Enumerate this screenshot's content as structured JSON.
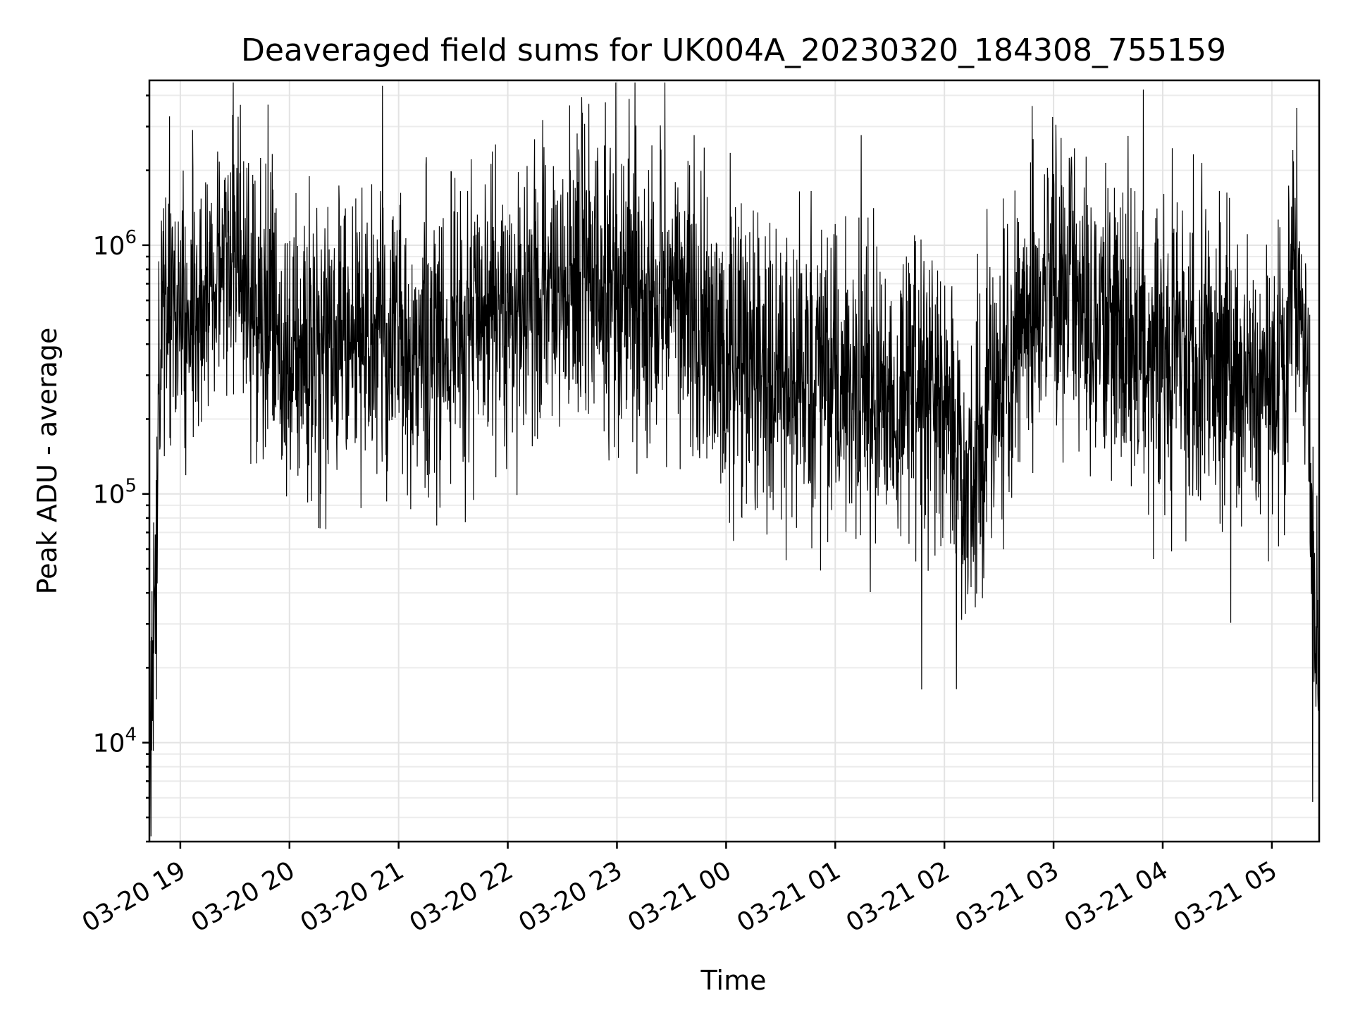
{
  "chart_data": {
    "type": "line",
    "title": "Deaveraged field sums for UK004A_20230320_184308_755159",
    "xlabel": "Time",
    "ylabel": "Peak ADU - average",
    "yscale": "log",
    "ylim": [
      4000,
      4600000
    ],
    "xlim": [
      "2023-03-20 18:43",
      "2023-03-21 05:26"
    ],
    "grid": true,
    "legend": "none",
    "line_color": "#000000",
    "x_ticks": [
      {
        "time": "2023-03-20 19:00",
        "label": "03-20 19"
      },
      {
        "time": "2023-03-20 20:00",
        "label": "03-20 20"
      },
      {
        "time": "2023-03-20 21:00",
        "label": "03-20 21"
      },
      {
        "time": "2023-03-20 22:00",
        "label": "03-20 22"
      },
      {
        "time": "2023-03-20 23:00",
        "label": "03-20 23"
      },
      {
        "time": "2023-03-21 00:00",
        "label": "03-21 00"
      },
      {
        "time": "2023-03-21 01:00",
        "label": "03-21 01"
      },
      {
        "time": "2023-03-21 02:00",
        "label": "03-21 02"
      },
      {
        "time": "2023-03-21 03:00",
        "label": "03-21 03"
      },
      {
        "time": "2023-03-21 04:00",
        "label": "03-21 04"
      },
      {
        "time": "2023-03-21 05:00",
        "label": "03-21 05"
      }
    ],
    "y_ticks": [
      {
        "value": 10000,
        "base": "10",
        "exp": "4"
      },
      {
        "value": 100000,
        "base": "10",
        "exp": "5"
      },
      {
        "value": 1000000,
        "base": "10",
        "exp": "6"
      }
    ],
    "series": [
      {
        "x": [
          "2023-03-20 18:43",
          "2023-03-20 18:44",
          "2023-03-20 18:45",
          "2023-03-20 18:46",
          "2023-03-20 18:47",
          "2023-03-20 18:48",
          "2023-03-20 18:49",
          "2023-03-20 18:50",
          "2023-03-20 18:52",
          "2023-03-20 18:55",
          "2023-03-20 19:00",
          "2023-03-20 19:10",
          "2023-03-20 19:20",
          "2023-03-20 19:30",
          "2023-03-20 19:40",
          "2023-03-20 19:50",
          "2023-03-20 20:00",
          "2023-03-20 20:15",
          "2023-03-20 20:30",
          "2023-03-20 20:45",
          "2023-03-20 21:00",
          "2023-03-20 21:15",
          "2023-03-20 21:30",
          "2023-03-20 21:45",
          "2023-03-20 22:00",
          "2023-03-20 22:15",
          "2023-03-20 22:30",
          "2023-03-20 22:45",
          "2023-03-20 23:00",
          "2023-03-20 23:15",
          "2023-03-20 23:30",
          "2023-03-20 23:45",
          "2023-03-21 00:00",
          "2023-03-21 00:15",
          "2023-03-21 00:30",
          "2023-03-21 00:45",
          "2023-03-21 01:00",
          "2023-03-21 01:15",
          "2023-03-21 01:30",
          "2023-03-21 01:45",
          "2023-03-21 02:00",
          "2023-03-21 02:10",
          "2023-03-21 02:20",
          "2023-03-21 02:30",
          "2023-03-21 02:45",
          "2023-03-21 03:00",
          "2023-03-21 03:15",
          "2023-03-21 03:30",
          "2023-03-21 03:45",
          "2023-03-21 04:00",
          "2023-03-21 04:15",
          "2023-03-21 04:30",
          "2023-03-21 04:45",
          "2023-03-21 05:00",
          "2023-03-21 05:08",
          "2023-03-21 05:12",
          "2023-03-21 05:16",
          "2023-03-21 05:20",
          "2023-03-21 05:23",
          "2023-03-21 05:26"
        ],
        "y": [
          9000,
          8500,
          20000,
          30000,
          55000,
          180000,
          300000,
          550000,
          500000,
          600000,
          550000,
          520000,
          800000,
          950000,
          600000,
          400000,
          350000,
          380000,
          400000,
          420000,
          450000,
          380000,
          400000,
          550000,
          600000,
          650000,
          600000,
          800000,
          650000,
          600000,
          700000,
          450000,
          320000,
          350000,
          300000,
          320000,
          330000,
          250000,
          220000,
          300000,
          200000,
          120000,
          150000,
          250000,
          500000,
          800000,
          550000,
          500000,
          450000,
          400000,
          350000,
          320000,
          300000,
          300000,
          350000,
          800000,
          500000,
          200000,
          40000,
          15000
        ],
        "jitter": 0.42
      }
    ]
  }
}
